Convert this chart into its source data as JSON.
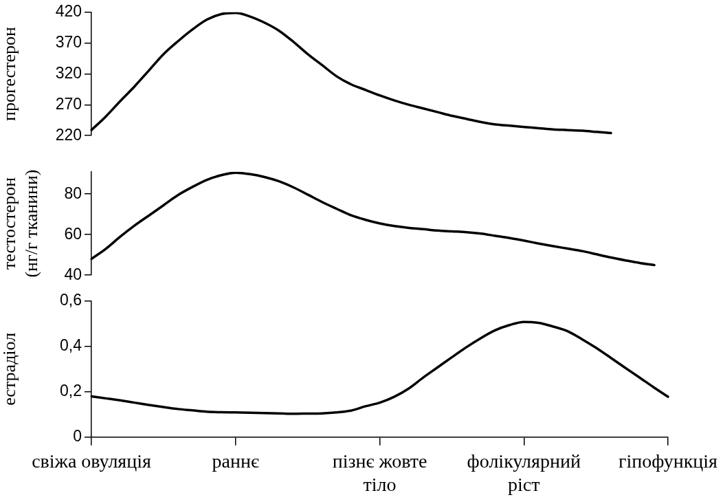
{
  "chart_data": [
    {
      "type": "line",
      "ylabel": "прогестерон",
      "ylim": [
        220,
        420
      ],
      "yticks": [
        220,
        270,
        320,
        370,
        420
      ],
      "tick_labels": "y",
      "series": [
        {
          "color": "#000000",
          "values": [
            229,
            251,
            276,
            300,
            326,
            352,
            373,
            392,
            408,
            417,
            419,
            413,
            403,
            390,
            372,
            352,
            334,
            316,
            303,
            294,
            285,
            277,
            270,
            264,
            258,
            252,
            247,
            242,
            238,
            236,
            234,
            232,
            230,
            229,
            228,
            226,
            224,
            null,
            null,
            null,
            null
          ]
        }
      ]
    },
    {
      "type": "line",
      "ylabel": "тестостерон (нг/г тканини)",
      "ylim": [
        40,
        91
      ],
      "yticks": [
        40,
        60,
        80
      ],
      "tick_labels": "y",
      "series": [
        {
          "color": "#000000",
          "values": [
            48,
            53,
            59,
            64.5,
            69.5,
            74.5,
            79.5,
            83.5,
            87,
            89.3,
            90.5,
            89.8,
            88.4,
            86.3,
            83.3,
            79.7,
            76,
            72.7,
            69.5,
            67.3,
            65.5,
            64.2,
            63.3,
            62.7,
            62,
            61.6,
            61.2,
            60.5,
            59.4,
            58.3,
            57,
            55.6,
            54.3,
            53.1,
            51.9,
            50.3,
            48.7,
            47.3,
            46,
            45,
            null
          ]
        }
      ]
    },
    {
      "type": "line",
      "ylabel": "естрадіол",
      "ylim": [
        0,
        0.6
      ],
      "yticks": [
        0,
        {
          "value": 0.2,
          "label": "0,2"
        },
        {
          "value": 0.4,
          "label": "0,4"
        },
        {
          "value": 0.6,
          "label": "0,6"
        }
      ],
      "categories": [
        "свіжа овуляція",
        null,
        null,
        null,
        null,
        null,
        null,
        null,
        null,
        null,
        "раннє",
        null,
        null,
        null,
        null,
        null,
        null,
        null,
        null,
        null,
        "пізнє жовте тіло",
        null,
        null,
        null,
        null,
        null,
        null,
        null,
        null,
        null,
        "фолікулярний ріст",
        null,
        null,
        null,
        null,
        null,
        null,
        null,
        null,
        null,
        "гіпофункція"
      ],
      "series": [
        {
          "color": "#000000",
          "values": [
            0.18,
            0.171,
            0.162,
            0.152,
            0.142,
            0.133,
            0.124,
            0.118,
            0.112,
            0.11,
            0.109,
            0.108,
            0.106,
            0.105,
            0.103,
            0.104,
            0.105,
            0.109,
            0.117,
            0.136,
            0.152,
            0.178,
            0.214,
            0.262,
            0.307,
            0.352,
            0.396,
            0.436,
            0.471,
            0.494,
            0.508,
            0.504,
            0.488,
            0.468,
            0.433,
            0.394,
            0.351,
            0.307,
            0.264,
            0.22,
            0.178
          ]
        }
      ]
    }
  ]
}
